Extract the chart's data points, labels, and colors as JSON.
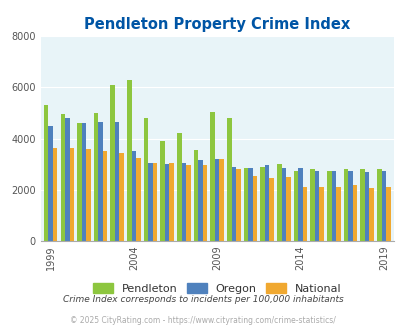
{
  "title": "Pendleton Property Crime Index",
  "subtitle": "Crime Index corresponds to incidents per 100,000 inhabitants",
  "footer": "© 2025 CityRating.com - https://www.cityrating.com/crime-statistics/",
  "pendleton_vals": [
    5300,
    4950,
    4600,
    5000,
    6100,
    6300,
    4800,
    3900,
    4200,
    3550,
    5050,
    4800,
    2850,
    2900,
    3000,
    2750,
    2800,
    2750,
    2800,
    2800,
    2800
  ],
  "oregon_vals": [
    4500,
    4800,
    4600,
    4650,
    4650,
    3500,
    3050,
    3000,
    3050,
    3150,
    3200,
    2900,
    2850,
    2950,
    2850,
    2850,
    2750,
    2750,
    2750,
    2700,
    2750
  ],
  "national_vals": [
    3650,
    3650,
    3600,
    3500,
    3450,
    3250,
    3050,
    3050,
    2950,
    2950,
    3200,
    2800,
    2550,
    2450,
    2500,
    2100,
    2100,
    2100,
    2200,
    2050,
    2100
  ],
  "color_pendleton": "#8dc63f",
  "color_oregon": "#4f81bd",
  "color_national": "#f0a830",
  "title_color": "#0055a5",
  "subtitle_color": "#444444",
  "footer_color": "#aaaaaa",
  "bg_color": "#e8f4f8",
  "ylim": [
    0,
    8000
  ],
  "yticks": [
    0,
    2000,
    4000,
    6000,
    8000
  ],
  "tick_years": [
    1999,
    2004,
    2009,
    2014,
    2019
  ],
  "start_year": 1999
}
